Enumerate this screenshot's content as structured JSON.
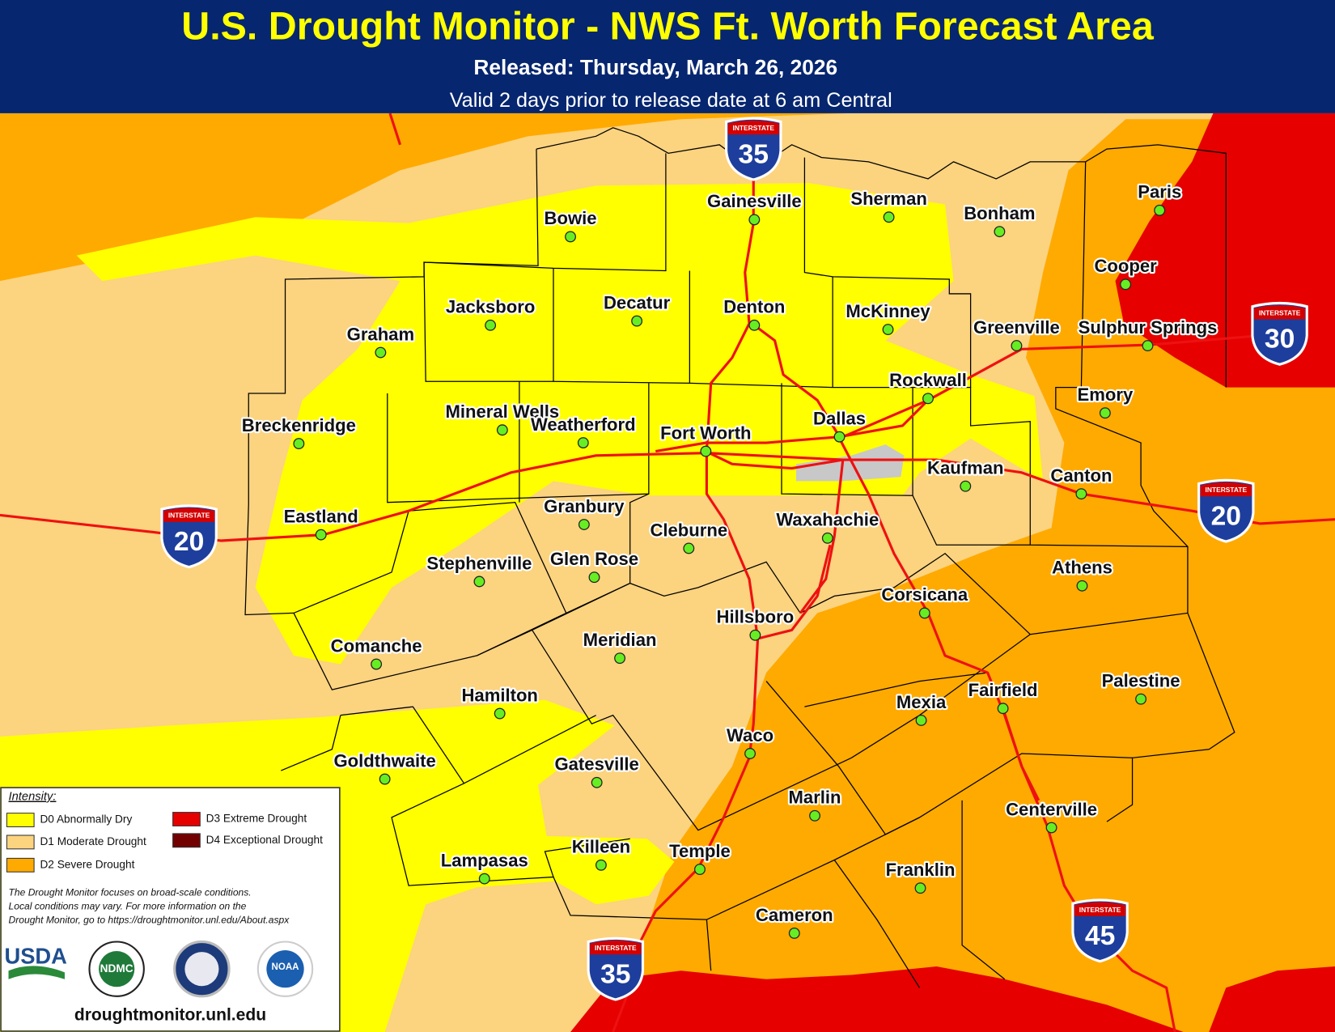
{
  "header": {
    "title": "U.S. Drought Monitor - NWS Ft. Worth Forecast Area",
    "released": "Released: Thursday, March 26, 2026",
    "valid": "Valid 2 days prior to release date at 6 am Central"
  },
  "legend": {
    "title": "Intensity:",
    "items": [
      {
        "label": "D0 Abnormally Dry",
        "color": "#ffff00"
      },
      {
        "label": "D1 Moderate Drought",
        "color": "#fcd37f"
      },
      {
        "label": "D2 Severe Drought",
        "color": "#ffaa00"
      },
      {
        "label": "D3 Extreme Drought",
        "color": "#e60000"
      },
      {
        "label": "D4 Exceptional Drought",
        "color": "#730000"
      }
    ],
    "note": [
      "The Drought Monitor focuses on broad-scale conditions.",
      "Local conditions may vary. For more information on the",
      "Drought Monitor, go to https://droughtmonitor.unl.edu/About.aspx"
    ],
    "logos": [
      "USDA",
      "NDMC",
      "NOAA"
    ],
    "url": "droughtmonitor.unl.edu"
  },
  "cities": [
    "Bowie",
    "Gainesville",
    "Sherman",
    "Bonham",
    "Paris",
    "Cooper",
    "Jacksboro",
    "Decatur",
    "Denton",
    "McKinney",
    "Graham",
    "Greenville",
    "Sulphur Springs",
    "Rockwall",
    "Emory",
    "Mineral Wells",
    "Weatherford",
    "Fort Worth",
    "Dallas",
    "Breckenridge",
    "Kaufman",
    "Canton",
    "Eastland",
    "Granbury",
    "Cleburne",
    "Waxahachie",
    "Stephenville",
    "Glen Rose",
    "Athens",
    "Corsicana",
    "Hillsboro",
    "Meridian",
    "Comanche",
    "Palestine",
    "Hamilton",
    "Mexia",
    "Fairfield",
    "Waco",
    "Goldthwaite",
    "Gatesville",
    "Marlin",
    "Centerville",
    "Killeen",
    "Temple",
    "Lampasas",
    "Franklin",
    "Cameron"
  ],
  "interstates": [
    {
      "label": "INTERSTATE",
      "number": "35"
    },
    {
      "label": "INTERSTATE",
      "number": "20"
    },
    {
      "label": "INTERSTATE",
      "number": "30"
    },
    {
      "label": "INTERSTATE",
      "number": "20"
    },
    {
      "label": "INTERSTATE",
      "number": "45"
    },
    {
      "label": "INTERSTATE",
      "number": "35"
    }
  ]
}
